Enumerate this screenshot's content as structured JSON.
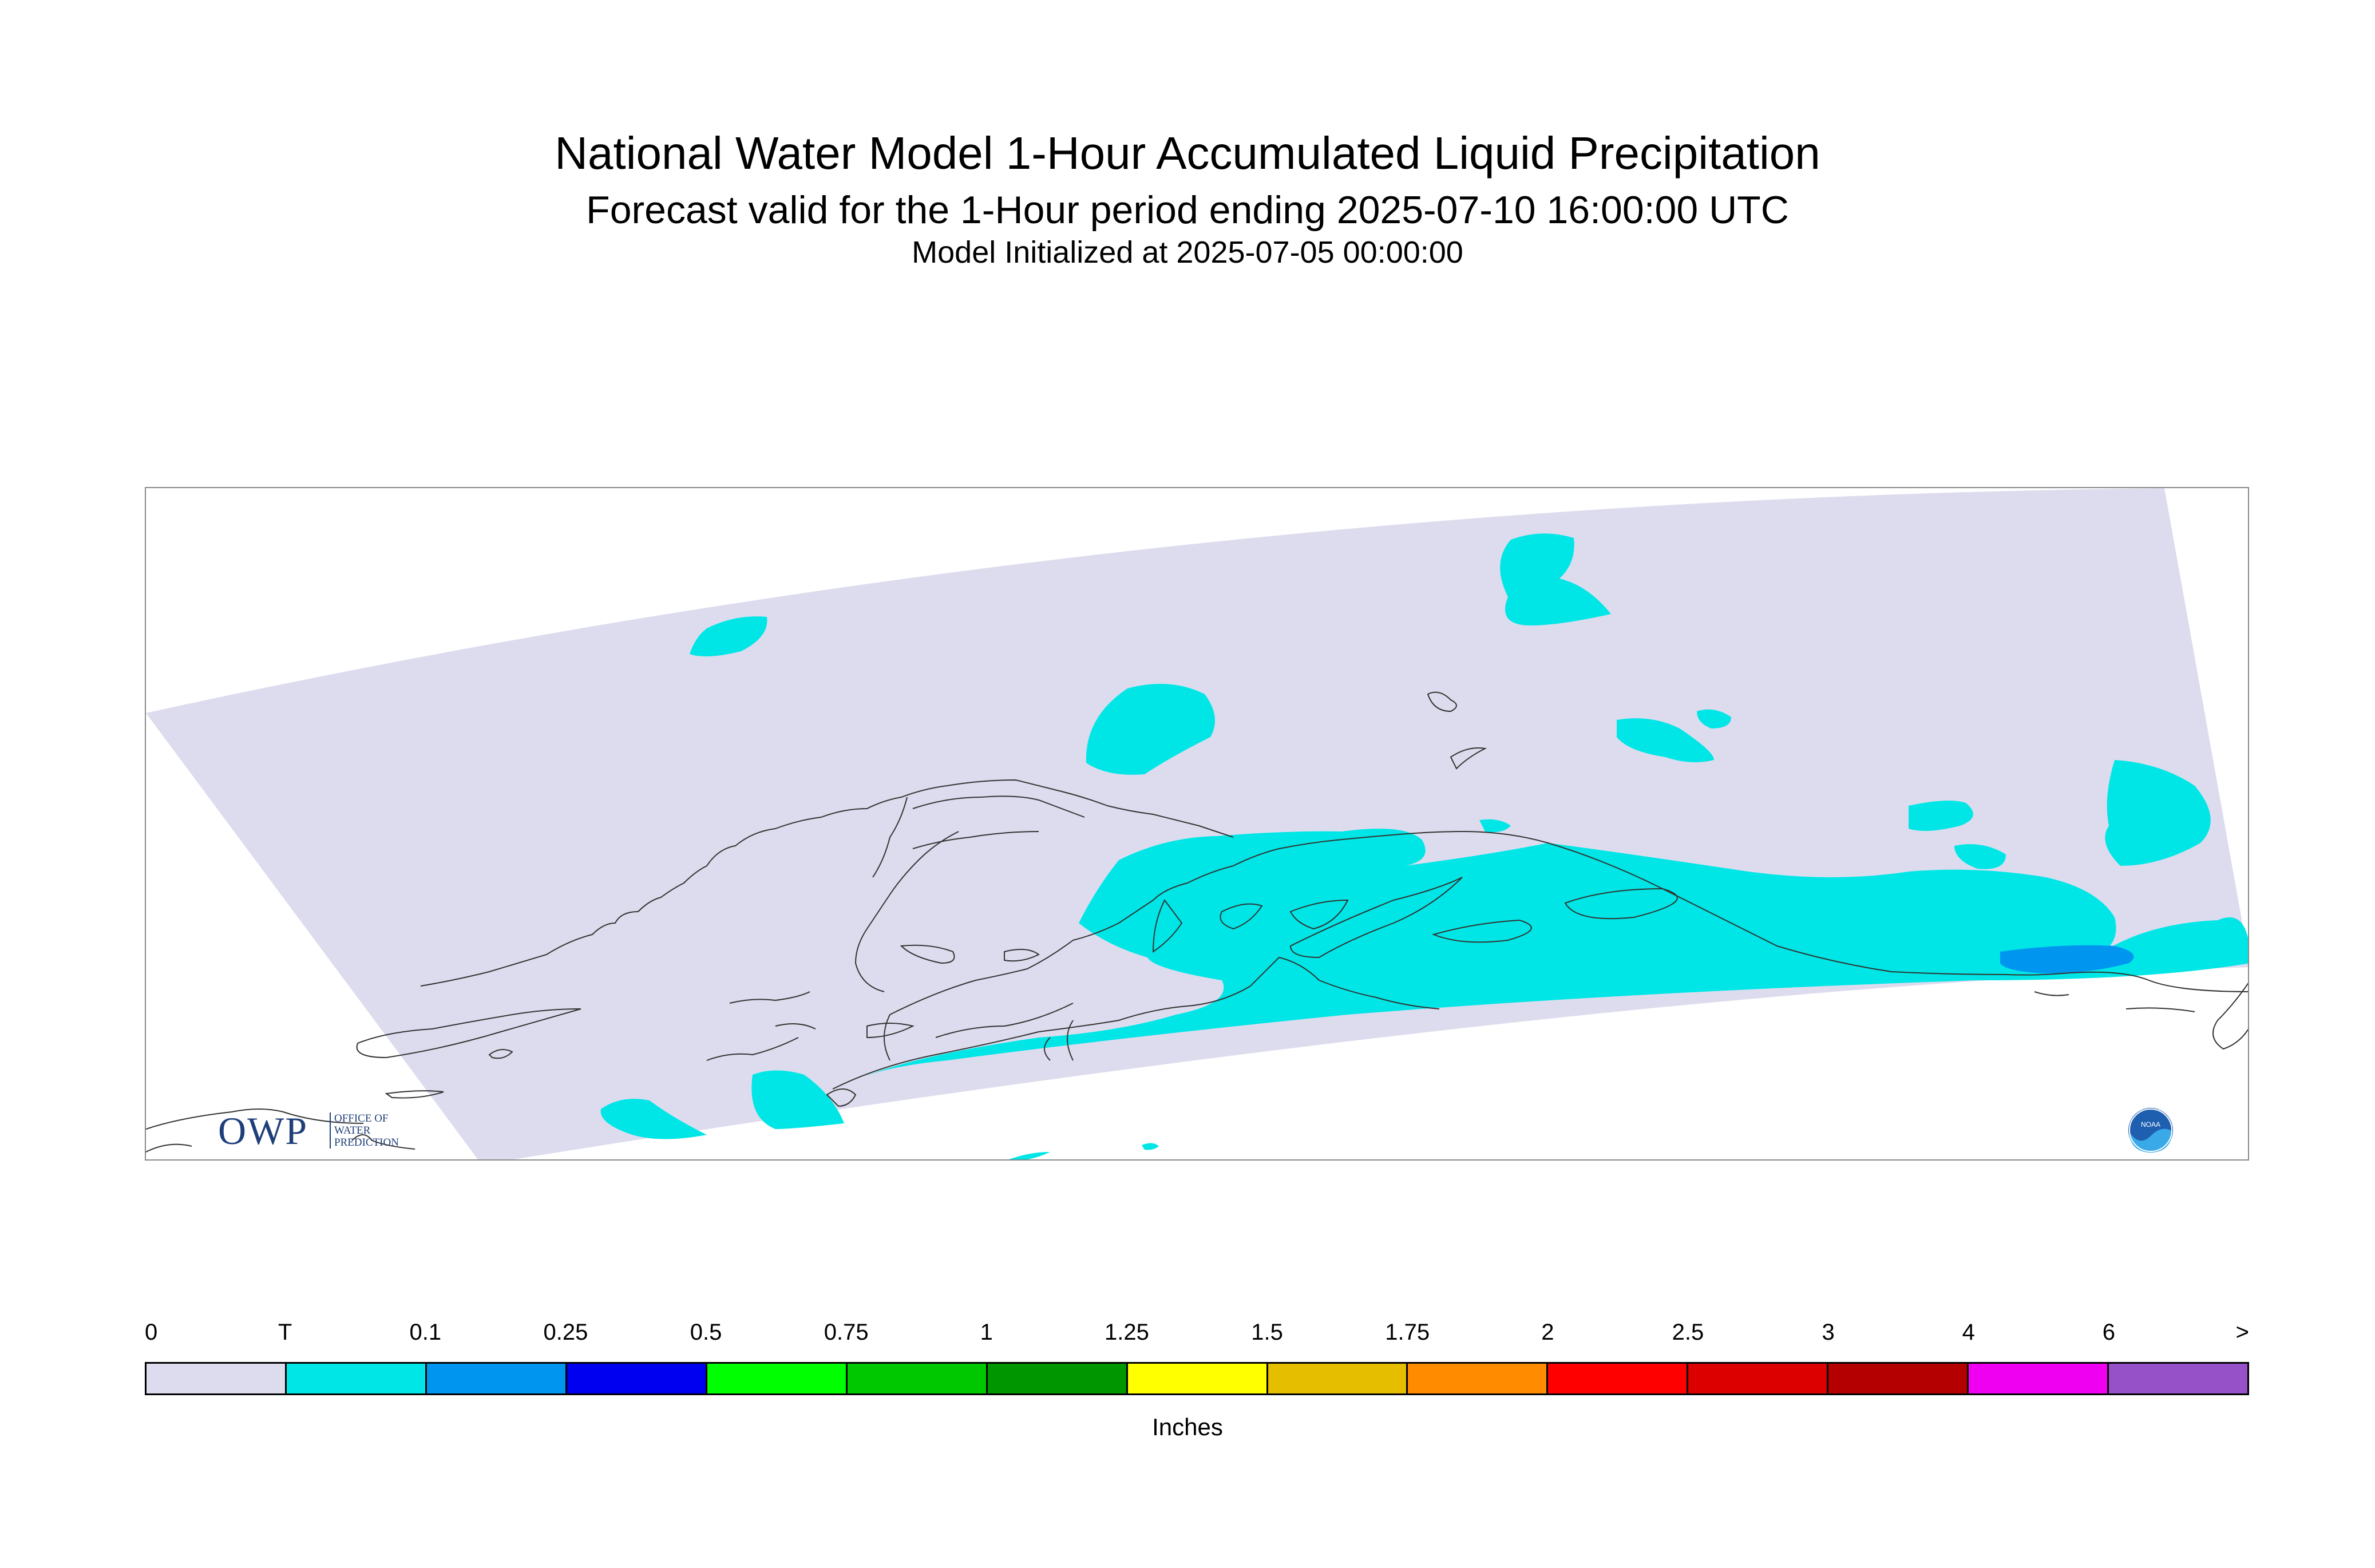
{
  "titles": {
    "main": "National Water Model 1-Hour Accumulated Liquid Precipitation",
    "forecast": "Forecast valid for the 1-Hour period ending 2025-07-10 16:00:00 UTC",
    "init": "Model Initialized at 2025-07-05 00:00:00"
  },
  "logos": {
    "owp_letters": "OWP",
    "owp_lines": [
      "OFFICE OF",
      "WATER",
      "PREDICTION"
    ],
    "noaa": "NOAA"
  },
  "legend": {
    "units": "Inches",
    "tick_labels": [
      "0",
      "T",
      "0.1",
      "0.25",
      "0.5",
      "0.75",
      "1",
      "1.25",
      "1.5",
      "1.75",
      "2",
      "2.5",
      "3",
      "4",
      "6",
      ">"
    ],
    "colors": [
      "#dcdcee",
      "#00e6e6",
      "#0096f0",
      "#0000f0",
      "#00ff00",
      "#00c800",
      "#009600",
      "#ffff00",
      "#e6be00",
      "#ff8c00",
      "#ff0000",
      "#dc0000",
      "#b40000",
      "#f000f0",
      "#9650c8"
    ]
  },
  "map": {
    "domain_color": "#dcdcee",
    "trace_color": "#00e6e6",
    "light_color": "#0096f0",
    "coast_color": "#333333"
  }
}
